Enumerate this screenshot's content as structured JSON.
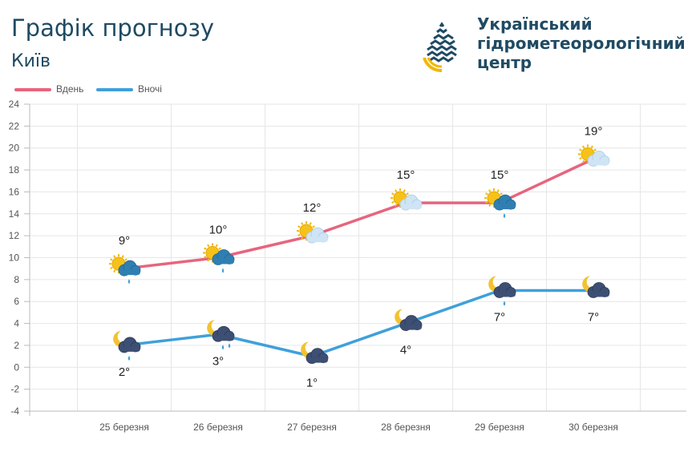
{
  "header": {
    "title": "Графік прогнозу",
    "city": "Київ",
    "org_lines": [
      "Український",
      "гідрометеорологічний",
      "центр"
    ]
  },
  "legend": [
    {
      "label": "Вдень",
      "color": "#e8647e"
    },
    {
      "label": "Вночі",
      "color": "#3fa0da"
    }
  ],
  "chart_data": {
    "type": "line",
    "categories": [
      "25 березня",
      "26 березня",
      "27 березня",
      "28 березня",
      "29 березня",
      "30 березня"
    ],
    "ylim": [
      -4,
      24
    ],
    "yticks": [
      -4,
      -2,
      0,
      2,
      4,
      6,
      8,
      10,
      12,
      14,
      16,
      18,
      20,
      22,
      24
    ],
    "grid": true,
    "legend_position": "top-left",
    "series": [
      {
        "name": "Вдень",
        "color": "#e8647e",
        "values": [
          9,
          10,
          12,
          15,
          15,
          19
        ],
        "labels": [
          "9°",
          "10°",
          "12°",
          "15°",
          "15°",
          "19°"
        ],
        "icons": [
          "sun-cloud-rain-icon",
          "sun-cloud-rain-icon",
          "sun-cloud-icon",
          "sun-cloud-icon",
          "sun-cloud-rain-icon",
          "sun-cloud-icon"
        ]
      },
      {
        "name": "Вночі",
        "color": "#3fa0da",
        "values": [
          2,
          3,
          1,
          4,
          7,
          7
        ],
        "labels": [
          "2°",
          "3°",
          "1°",
          "4°",
          "7°",
          "7°"
        ],
        "icons": [
          "moon-cloud-rain-icon",
          "moon-cloud-rain-icon",
          "moon-cloud-icon",
          "moon-cloud-icon",
          "moon-cloud-rain-icon",
          "moon-cloud-icon"
        ]
      }
    ]
  }
}
